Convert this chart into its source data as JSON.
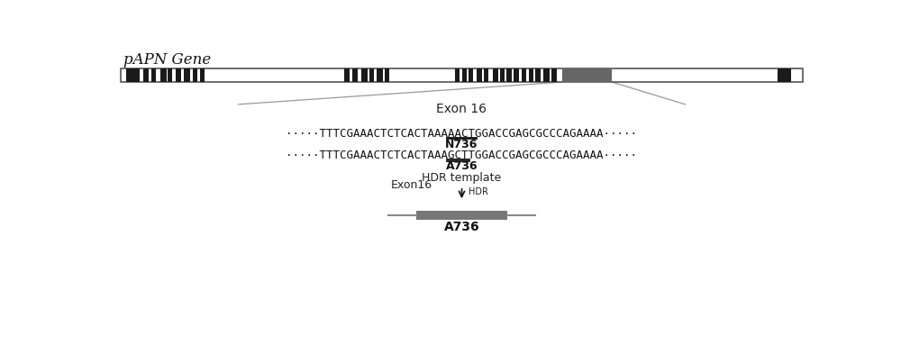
{
  "title": "pAPN Gene",
  "bg_color": "#ffffff",
  "exon_color": "#1a1a1a",
  "large_exon_color": "#666666",
  "intron_color": "#aaaaaa",
  "seq1_prefix": "·····TTTCGAAACTCTCACTAAA",
  "seq1_underline": "AACT",
  "seq1_suffix": "GGACCGAGCGCCCAGAAAA·····",
  "label1": "N736",
  "seq2_prefix": "·····TTTCGAAACTCTCACTAAA",
  "seq2_underline": "GCT",
  "seq2_suffix": "TGGACCGAGCGCCCAGAAAA·····",
  "label2": "A736",
  "hdr_template_label": "HDR template",
  "hdr_label": "HDR",
  "exon16_label": "Exon16",
  "exon16_text": "Exon 16",
  "bottom_label": "A736",
  "exon16_box_color": "#777777",
  "line_color": "#999999",
  "arrow_color": "#1a1a1a",
  "gene_bar_edge": "#555555"
}
